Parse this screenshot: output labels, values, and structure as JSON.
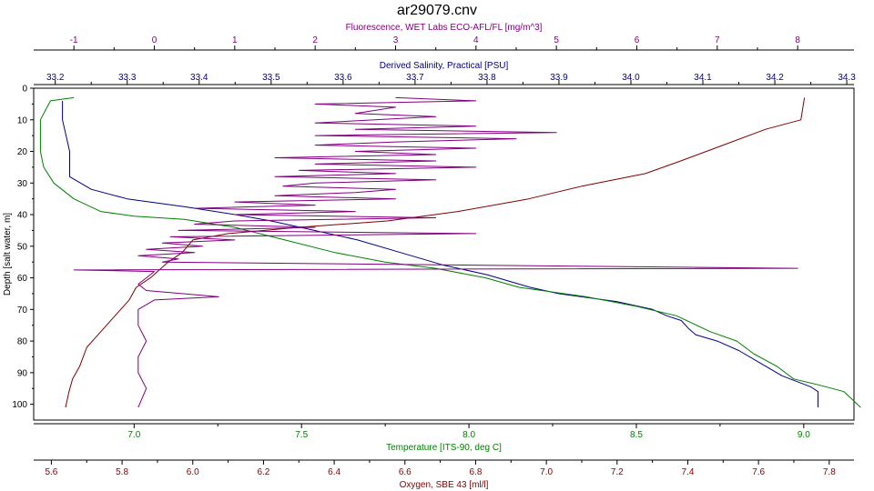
{
  "chart_data": {
    "type": "line",
    "title": "ar29079.cnv",
    "grid": false,
    "y_axis": {
      "label": "Depth [salt water, m]",
      "range": [
        0,
        105
      ],
      "inverted": true,
      "ticks": [
        0,
        10,
        20,
        30,
        40,
        50,
        60,
        70,
        80,
        90,
        100
      ],
      "color": "#000000"
    },
    "x_axes": [
      {
        "id": "fluorescence",
        "label": "Fluorescence, WET Labs ECO-AFL/FL [mg/m^3]",
        "position": "top-outer",
        "range": [
          -1.5,
          8.7
        ],
        "ticks": [
          -1,
          0,
          1,
          2,
          3,
          4,
          5,
          6,
          7,
          8
        ],
        "color": "#800080"
      },
      {
        "id": "salinity",
        "label": "Derived Salinity, Practical [PSU]",
        "position": "top-inner",
        "range": [
          33.17,
          34.31
        ],
        "ticks": [
          33.2,
          33.3,
          33.4,
          33.5,
          33.6,
          33.7,
          33.8,
          33.9,
          34.0,
          34.1,
          34.2,
          34.3
        ],
        "tick_labels": [
          "33.2",
          "33.3",
          "33.4",
          "33.5",
          "33.6",
          "33.7",
          "33.8",
          "33.9",
          "34.0",
          "34.1",
          "34.2",
          "34.3"
        ],
        "color": "#000080"
      },
      {
        "id": "temperature",
        "label": "Temperature [ITS-90, deg C]",
        "position": "bottom-inner",
        "range": [
          6.7,
          9.15
        ],
        "ticks": [
          7.0,
          7.5,
          8.0,
          8.5,
          9.0
        ],
        "tick_labels": [
          "7.0",
          "7.5",
          "8.0",
          "8.5",
          "9.0"
        ],
        "color": "#008000"
      },
      {
        "id": "oxygen",
        "label": "Oxygen, SBE 43 [ml/l]",
        "position": "bottom-outer",
        "range": [
          5.55,
          7.87
        ],
        "ticks": [
          5.6,
          5.8,
          6.0,
          6.2,
          6.4,
          6.6,
          6.8,
          7.0,
          7.2,
          7.4,
          7.6,
          7.8
        ],
        "tick_labels": [
          "5.6",
          "5.8",
          "6.0",
          "6.2",
          "6.4",
          "6.6",
          "6.8",
          "7.0",
          "7.2",
          "7.4",
          "7.6",
          "7.8"
        ],
        "color": "#800000"
      }
    ],
    "series": [
      {
        "axis": "salinity",
        "color": "#000080",
        "points": [
          [
            33.21,
            4
          ],
          [
            33.21,
            10
          ],
          [
            33.22,
            20
          ],
          [
            33.22,
            28
          ],
          [
            33.25,
            32
          ],
          [
            33.3,
            35
          ],
          [
            33.38,
            37.5
          ],
          [
            33.45,
            40
          ],
          [
            33.5,
            42
          ],
          [
            33.56,
            45
          ],
          [
            33.62,
            48
          ],
          [
            33.68,
            52
          ],
          [
            33.74,
            56
          ],
          [
            33.8,
            59
          ],
          [
            33.86,
            63
          ],
          [
            33.9,
            65
          ],
          [
            33.98,
            67.5
          ],
          [
            34.03,
            70
          ],
          [
            34.05,
            72
          ],
          [
            34.07,
            73.5
          ],
          [
            34.08,
            76
          ],
          [
            34.09,
            78
          ],
          [
            34.12,
            80
          ],
          [
            34.15,
            83
          ],
          [
            34.18,
            87
          ],
          [
            34.21,
            91
          ],
          [
            34.25,
            94.5
          ],
          [
            34.26,
            96
          ],
          [
            34.26,
            101
          ]
        ]
      },
      {
        "axis": "temperature",
        "color": "#008000",
        "points": [
          [
            6.82,
            3
          ],
          [
            6.75,
            4
          ],
          [
            6.74,
            6
          ],
          [
            6.72,
            10
          ],
          [
            6.72,
            15
          ],
          [
            6.72,
            20
          ],
          [
            6.73,
            25
          ],
          [
            6.76,
            30
          ],
          [
            6.82,
            35
          ],
          [
            6.9,
            39
          ],
          [
            7.0,
            40.5
          ],
          [
            7.15,
            41.5
          ],
          [
            7.3,
            44
          ],
          [
            7.45,
            48
          ],
          [
            7.6,
            52
          ],
          [
            7.75,
            55
          ],
          [
            7.9,
            57
          ],
          [
            8.05,
            60
          ],
          [
            8.15,
            63
          ],
          [
            8.35,
            66
          ],
          [
            8.5,
            69
          ],
          [
            8.62,
            72
          ],
          [
            8.72,
            77
          ],
          [
            8.8,
            80
          ],
          [
            8.85,
            84
          ],
          [
            8.92,
            88
          ],
          [
            8.97,
            92
          ],
          [
            9.05,
            94
          ],
          [
            9.12,
            96
          ],
          [
            9.17,
            101
          ]
        ]
      },
      {
        "axis": "oxygen",
        "color": "#800000",
        "points": [
          [
            7.73,
            3
          ],
          [
            7.72,
            10
          ],
          [
            7.62,
            13
          ],
          [
            7.5,
            18
          ],
          [
            7.38,
            23
          ],
          [
            7.28,
            27
          ],
          [
            7.1,
            31
          ],
          [
            6.95,
            35
          ],
          [
            6.75,
            39
          ],
          [
            6.55,
            42
          ],
          [
            6.3,
            44
          ],
          [
            6.1,
            46
          ],
          [
            6.0,
            48
          ],
          [
            5.97,
            52
          ],
          [
            5.93,
            55
          ],
          [
            5.88,
            60
          ],
          [
            5.84,
            63
          ],
          [
            5.82,
            67
          ],
          [
            5.78,
            72
          ],
          [
            5.74,
            77
          ],
          [
            5.7,
            82
          ],
          [
            5.68,
            88
          ],
          [
            5.66,
            92
          ],
          [
            5.65,
            96
          ],
          [
            5.64,
            101
          ]
        ]
      },
      {
        "axis": "fluorescence",
        "color": "#800080",
        "points": [
          [
            3,
            3
          ],
          [
            4,
            4
          ],
          [
            2,
            5
          ],
          [
            3,
            6
          ],
          [
            2.5,
            8
          ],
          [
            3.5,
            9
          ],
          [
            2,
            11
          ],
          [
            4,
            12
          ],
          [
            2.5,
            13
          ],
          [
            5,
            14
          ],
          [
            2,
            15
          ],
          [
            4.5,
            16
          ],
          [
            3,
            17
          ],
          [
            2,
            18
          ],
          [
            4,
            19
          ],
          [
            2.5,
            20
          ],
          [
            3.5,
            21
          ],
          [
            1.5,
            22
          ],
          [
            3.5,
            23
          ],
          [
            2,
            24
          ],
          [
            4,
            25
          ],
          [
            1.8,
            26
          ],
          [
            3,
            27
          ],
          [
            1.5,
            28
          ],
          [
            3.5,
            29
          ],
          [
            2,
            30
          ],
          [
            1.6,
            31
          ],
          [
            3,
            32
          ],
          [
            2.5,
            33
          ],
          [
            1.5,
            34
          ],
          [
            3,
            35
          ],
          [
            1,
            36
          ],
          [
            2,
            37
          ],
          [
            0.5,
            38
          ],
          [
            2.5,
            39
          ],
          [
            1,
            40
          ],
          [
            3.5,
            41
          ],
          [
            1,
            42
          ],
          [
            0.5,
            43
          ],
          [
            2,
            44
          ],
          [
            0.3,
            45
          ],
          [
            4,
            46
          ],
          [
            0.2,
            47
          ],
          [
            1,
            48
          ],
          [
            0.1,
            49
          ],
          [
            0.6,
            50
          ],
          [
            -0.1,
            51
          ],
          [
            0.5,
            52
          ],
          [
            -0.2,
            53
          ],
          [
            0.3,
            54
          ],
          [
            0.1,
            55
          ],
          [
            8,
            57
          ],
          [
            -1,
            57.5
          ],
          [
            0,
            58
          ],
          [
            -0.1,
            60
          ],
          [
            -0.2,
            62
          ],
          [
            -0.1,
            64
          ],
          [
            0.8,
            66
          ],
          [
            0,
            67
          ],
          [
            -0.2,
            70
          ],
          [
            -0.2,
            75
          ],
          [
            -0.1,
            80
          ],
          [
            -0.2,
            85
          ],
          [
            -0.2,
            90
          ],
          [
            -0.1,
            95
          ],
          [
            -0.2,
            101
          ]
        ]
      }
    ]
  }
}
